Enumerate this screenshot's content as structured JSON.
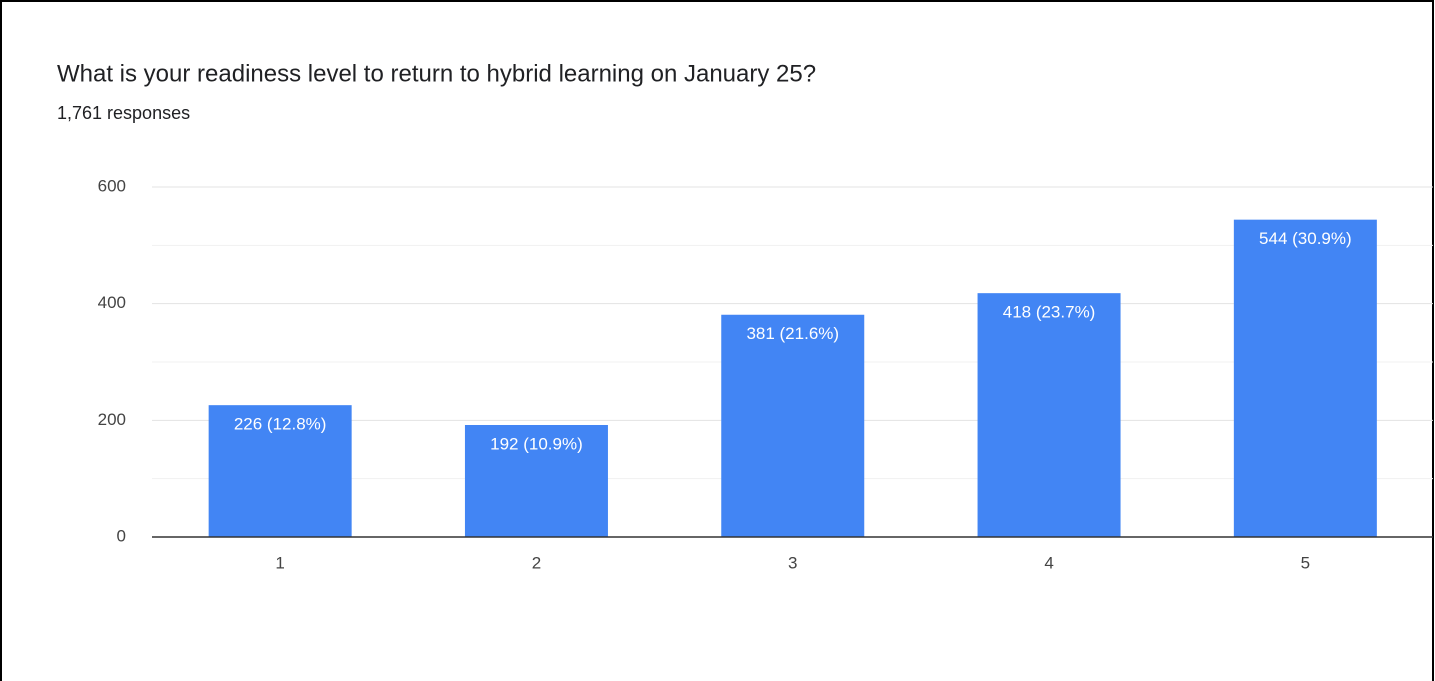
{
  "chart_data": {
    "type": "bar",
    "title": "What is your readiness level to return to hybrid learning on January 25?",
    "subtitle": "1,761 responses",
    "categories": [
      "1",
      "2",
      "3",
      "4",
      "5"
    ],
    "values": [
      226,
      192,
      381,
      418,
      544
    ],
    "value_labels": [
      "226 (12.8%)",
      "192 (10.9%)",
      "381 (21.6%)",
      "418 (23.7%)",
      "544 (30.9%)"
    ],
    "color": "#4285f4",
    "ylim": [
      0,
      600
    ],
    "yticks": [
      0,
      200,
      400,
      600
    ],
    "yminor": [
      100,
      300,
      500
    ],
    "grid": true
  }
}
